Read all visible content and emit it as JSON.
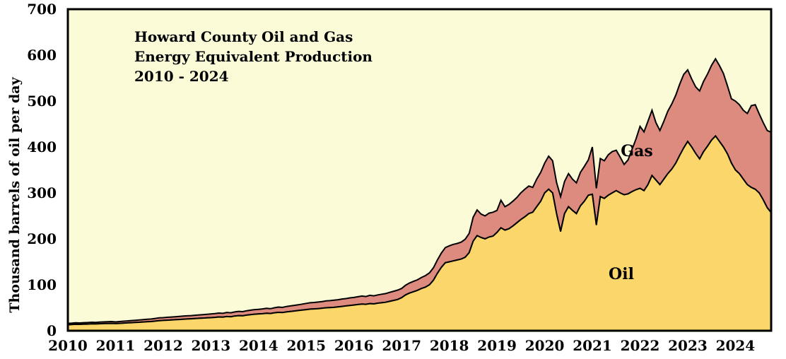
{
  "chart_data": {
    "type": "area",
    "stacked": true,
    "title": [
      "Howard County Oil and Gas",
      "Energy Equivalent Production",
      "2010 - 2024"
    ],
    "ylabel": "Thousand barrels of oil per day",
    "xlabel": "",
    "ylim": [
      0,
      700
    ],
    "xlim": [
      2010,
      2024.75
    ],
    "yticks": [
      "0",
      "100",
      "200",
      "300",
      "400",
      "500",
      "600",
      "700"
    ],
    "ytick_values": [
      0,
      100,
      200,
      300,
      400,
      500,
      600,
      700
    ],
    "xticks": [
      "2010",
      "2011",
      "2012",
      "2013",
      "2014",
      "2015",
      "2016",
      "2017",
      "2018",
      "2019",
      "2020",
      "2021",
      "2022",
      "2023",
      "2024"
    ],
    "xtick_values": [
      2010,
      2011,
      2012,
      2013,
      2014,
      2015,
      2016,
      2017,
      2018,
      2019,
      2020,
      2021,
      2022,
      2023,
      2024
    ],
    "x_start": 2010.0,
    "x_step": 0.0833333,
    "grid": false,
    "legend_position": "inline-labels",
    "plot_background_color": "#FBFBD8",
    "outline_color": "#000000",
    "series_labels": {
      "gas": {
        "text": "Gas"
      },
      "oil": {
        "text": "Oil"
      }
    },
    "series": [
      {
        "name": "Oil",
        "color": "#FBD76B",
        "values": [
          13,
          13.5,
          14,
          13.8,
          14.2,
          14.5,
          15,
          14.8,
          15.2,
          15.5,
          15.8,
          16,
          15.5,
          16,
          16.5,
          17,
          17.5,
          18,
          18.5,
          19,
          19.5,
          20,
          21,
          22,
          22.5,
          23,
          23.5,
          24,
          24.5,
          25,
          25.5,
          26,
          26.5,
          27,
          27.5,
          28,
          28.5,
          29,
          30,
          29.5,
          31,
          30.5,
          32,
          33,
          32.5,
          34,
          35,
          36,
          36.5,
          37,
          38,
          37.5,
          39,
          40,
          39.5,
          41,
          42,
          43,
          44,
          45,
          46,
          47,
          47.5,
          48,
          49,
          50,
          50.5,
          51,
          52,
          53,
          54,
          55,
          56,
          57,
          58,
          57.5,
          59,
          58.5,
          60,
          61,
          62,
          64,
          66,
          68,
          72,
          78,
          82,
          85,
          88,
          92,
          95,
          100,
          110,
          125,
          138,
          148,
          150,
          152,
          154,
          156,
          160,
          170,
          195,
          207,
          203,
          200,
          204,
          206,
          214,
          224,
          219,
          222,
          228,
          235,
          242,
          248,
          255,
          258,
          270,
          282,
          300,
          308,
          300,
          255,
          216,
          255,
          270,
          262,
          255,
          272,
          282,
          295,
          297,
          230,
          292,
          288,
          295,
          300,
          305,
          300,
          296,
          298,
          303,
          307,
          310,
          305,
          318,
          338,
          328,
          318,
          330,
          342,
          352,
          365,
          382,
          398,
          412,
          400,
          386,
          374,
          390,
          402,
          415,
          424,
          412,
          400,
          385,
          365,
          350,
          342,
          330,
          318,
          312,
          308,
          300,
          285,
          268,
          257
        ]
      },
      {
        "name": "Gas",
        "color": "#DD8B7E",
        "values": [
          3,
          3,
          3.2,
          3.1,
          3.3,
          3.4,
          3.5,
          3.4,
          3.6,
          3.7,
          3.8,
          4,
          3.8,
          4,
          4.2,
          4.4,
          4.6,
          4.8,
          5,
          5.2,
          5.4,
          5.6,
          5.8,
          6,
          6,
          6.2,
          6.4,
          6.5,
          6.6,
          6.8,
          7,
          7,
          7.2,
          7.4,
          7.6,
          7.8,
          8,
          8.2,
          8.5,
          8.3,
          8.8,
          8.6,
          9,
          9.2,
          9,
          9.5,
          9.8,
          10,
          10,
          10.5,
          10.8,
          10.5,
          11,
          11.5,
          11.2,
          11.8,
          12,
          12.2,
          12.5,
          13,
          13.5,
          14,
          14,
          14.5,
          14.5,
          15,
          15,
          15.5,
          15.5,
          16,
          16,
          16.5,
          16.5,
          17,
          17.5,
          17,
          18,
          17.5,
          18,
          18.5,
          19,
          19.5,
          20,
          20.5,
          20,
          21,
          22,
          22.5,
          23,
          24,
          25,
          26,
          27,
          29,
          31,
          33,
          35,
          36,
          36,
          37,
          39,
          42,
          52,
          56,
          51,
          50,
          52,
          52,
          48,
          60,
          51,
          53,
          54,
          55,
          58,
          60,
          60,
          54,
          60,
          63,
          65,
          72,
          70,
          68,
          76,
          70,
          72,
          68,
          67,
          73,
          76,
          77,
          103,
          80,
          83,
          82,
          88,
          90,
          88,
          78,
          66,
          74,
          92,
          111,
          135,
          128,
          138,
          142,
          125,
          118,
          126,
          136,
          142,
          148,
          155,
          160,
          156,
          148,
          145,
          148,
          153,
          157,
          163,
          168,
          165,
          160,
          148,
          140,
          150,
          150,
          150,
          155,
          178,
          184,
          172,
          168,
          168,
          175
        ]
      }
    ]
  }
}
